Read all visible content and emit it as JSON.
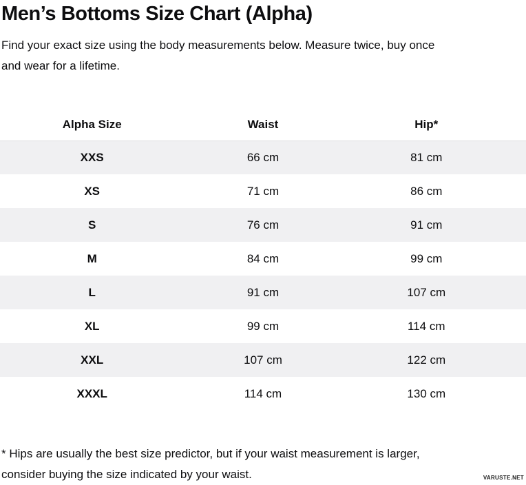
{
  "page": {
    "title": "Men’s Bottoms Size Chart (Alpha)",
    "subtitle_lines": [
      "Find your exact size using the body measurements below. Measure twice, buy once",
      "and wear for a lifetime."
    ],
    "footnote_lines": [
      "* Hips are usually the best size predictor, but if your waist measurement is larger,",
      "consider buying the size indicated by your waist."
    ],
    "watermark": "VARUSTE.NET"
  },
  "size_chart": {
    "columns": [
      "Alpha Size",
      "Waist",
      "Hip*"
    ],
    "rows": [
      {
        "size": "XXS",
        "waist": "66 cm",
        "hip": "81 cm"
      },
      {
        "size": "XS",
        "waist": "71 cm",
        "hip": "86 cm"
      },
      {
        "size": "S",
        "waist": "76 cm",
        "hip": "91 cm"
      },
      {
        "size": "M",
        "waist": "84 cm",
        "hip": "99 cm"
      },
      {
        "size": "L",
        "waist": "91 cm",
        "hip": "107 cm"
      },
      {
        "size": "XL",
        "waist": "99 cm",
        "hip": "114 cm"
      },
      {
        "size": "XXL",
        "waist": "107 cm",
        "hip": "122 cm"
      },
      {
        "size": "XXXL",
        "waist": "114 cm",
        "hip": "130 cm"
      }
    ],
    "colors": {
      "stripe": "#f0f0f2",
      "divider": "#dcdce0",
      "text": "#0d0d0f"
    }
  }
}
